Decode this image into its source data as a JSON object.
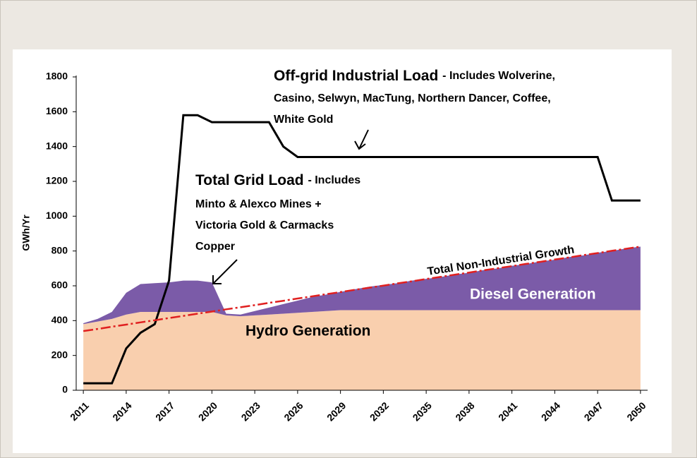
{
  "chart_data": {
    "type": "stacked_area_line",
    "ylabel": "GWh/Yr",
    "x": [
      2011,
      2012,
      2013,
      2014,
      2015,
      2016,
      2017,
      2018,
      2019,
      2020,
      2021,
      2022,
      2023,
      2024,
      2025,
      2026,
      2027,
      2028,
      2029,
      2030,
      2031,
      2032,
      2033,
      2034,
      2035,
      2036,
      2037,
      2038,
      2039,
      2040,
      2041,
      2042,
      2043,
      2044,
      2045,
      2046,
      2047,
      2048,
      2049,
      2050
    ],
    "xlim": [
      2010.5,
      2050.5
    ],
    "xticks": [
      2011,
      2014,
      2017,
      2020,
      2023,
      2026,
      2029,
      2032,
      2035,
      2038,
      2041,
      2044,
      2047,
      2050
    ],
    "ylim": [
      0,
      1800
    ],
    "yticks": [
      0,
      200,
      400,
      600,
      800,
      1000,
      1200,
      1400,
      1600,
      1800
    ],
    "series": [
      {
        "name": "Hydro Generation",
        "kind": "area",
        "color": "#f9cfae",
        "values": [
          380,
          395,
          410,
          435,
          450,
          450,
          450,
          450,
          450,
          450,
          430,
          425,
          430,
          435,
          440,
          445,
          450,
          455,
          460,
          460,
          460,
          460,
          460,
          460,
          460,
          460,
          460,
          460,
          460,
          460,
          460,
          460,
          460,
          460,
          460,
          460,
          460,
          460,
          460,
          460
        ]
      },
      {
        "name": "Diesel Generation",
        "kind": "area",
        "color": "#7b5ba8",
        "values": [
          5,
          15,
          40,
          125,
          160,
          165,
          170,
          180,
          180,
          170,
          10,
          10,
          25,
          40,
          55,
          70,
          85,
          95,
          105,
          120,
          135,
          145,
          155,
          170,
          180,
          190,
          205,
          215,
          230,
          240,
          255,
          265,
          280,
          290,
          305,
          315,
          330,
          340,
          355,
          365
        ]
      },
      {
        "name": "Off-grid Industrial Load",
        "kind": "line",
        "color": "#000000",
        "values": [
          40,
          40,
          40,
          240,
          330,
          380,
          630,
          1580,
          1580,
          1540,
          1540,
          1540,
          1540,
          1540,
          1400,
          1340,
          1340,
          1340,
          1340,
          1340,
          1340,
          1340,
          1340,
          1340,
          1340,
          1340,
          1340,
          1340,
          1340,
          1340,
          1340,
          1340,
          1340,
          1340,
          1340,
          1340,
          1340,
          1090,
          1090,
          1090
        ]
      },
      {
        "name": "Total Non-Industrial Growth",
        "kind": "dashline",
        "color": "#e02020",
        "values": [
          340,
          352,
          365,
          377,
          390,
          402,
          415,
          427,
          440,
          452,
          465,
          477,
          489,
          502,
          514,
          527,
          539,
          552,
          564,
          577,
          589,
          601,
          614,
          626,
          639,
          651,
          664,
          676,
          689,
          701,
          713,
          726,
          738,
          751,
          763,
          776,
          788,
          801,
          813,
          825
        ]
      }
    ],
    "annotations": {
      "offgrid": [
        "- Includes Wolverine,",
        "Casino, Selwyn, MacTung, Northern Dancer, Coffee,",
        "White Gold"
      ],
      "grid_title": "Total Grid Load",
      "grid": [
        "- Includes",
        "Minto  & Alexco Mines +",
        "Victoria Gold & Carmacks",
        "Copper"
      ]
    }
  }
}
